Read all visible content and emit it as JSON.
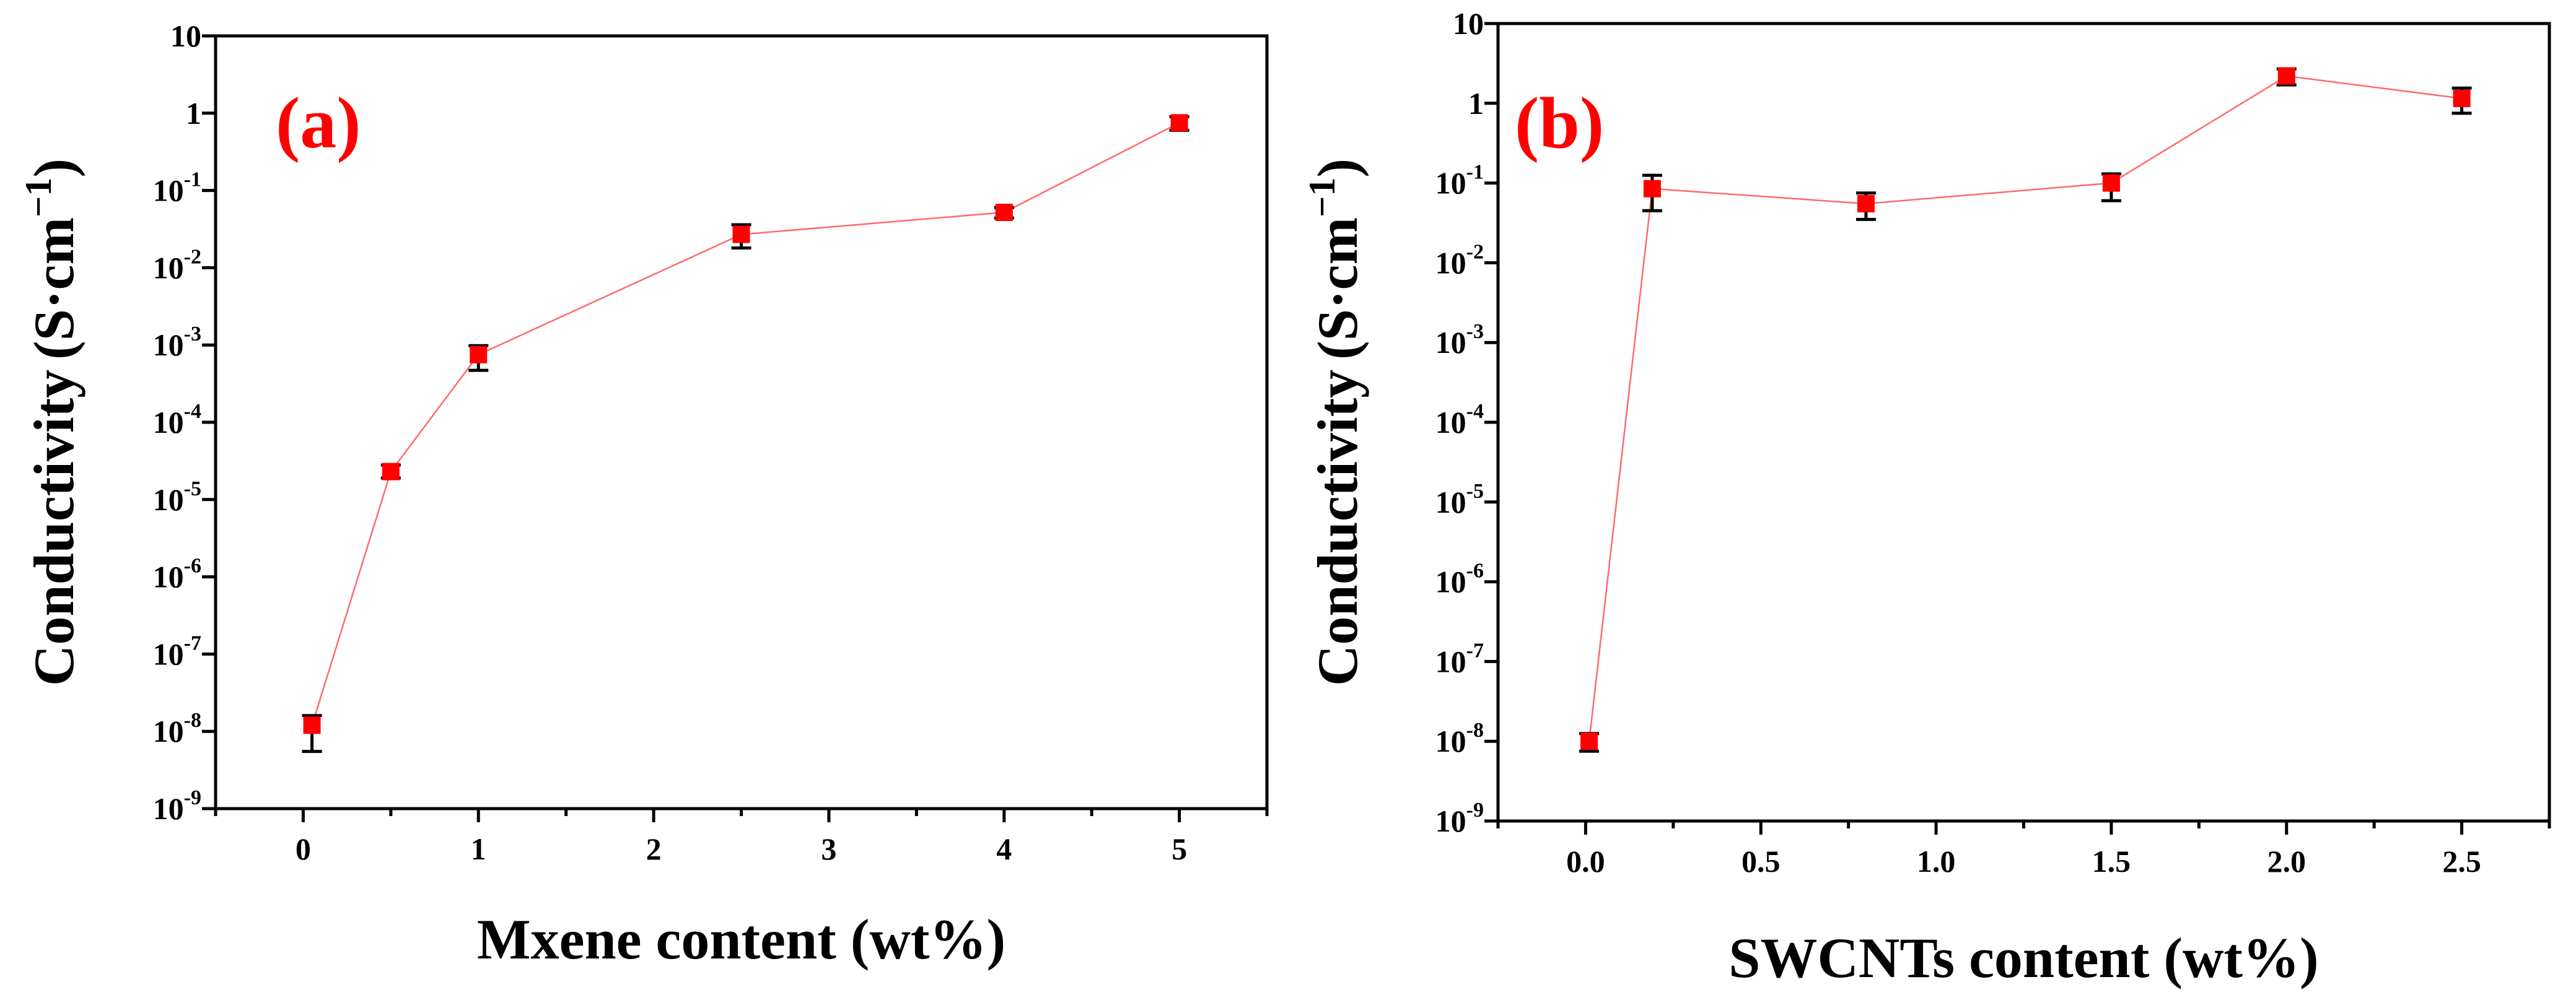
{
  "chart_data": [
    {
      "type": "scatter",
      "panel_label": "(a)",
      "xlabel": "Mxene content (wt%)",
      "ylabel": {
        "main": "Conductivity",
        "unit_prefix": "(S·cm",
        "unit_exponent": "−1",
        "unit_suffix": ")"
      },
      "yscale": "log",
      "xlim": [
        -0.5,
        5.5
      ],
      "ylim_exp": [
        -9,
        1
      ],
      "x_ticks": [
        0,
        1,
        2,
        3,
        4,
        5
      ],
      "x_tick_labels": [
        "0",
        "1",
        "2",
        "3",
        "4",
        "5"
      ],
      "y_ticks": [
        {
          "exp": 1,
          "base": "10",
          "sup": ""
        },
        {
          "exp": 0,
          "base": "1",
          "sup": ""
        },
        {
          "exp": -1,
          "base": "10",
          "sup": "-1"
        },
        {
          "exp": -2,
          "base": "10",
          "sup": "-2"
        },
        {
          "exp": -3,
          "base": "10",
          "sup": "-3"
        },
        {
          "exp": -4,
          "base": "10",
          "sup": "-4"
        },
        {
          "exp": -5,
          "base": "10",
          "sup": "-5"
        },
        {
          "exp": -6,
          "base": "10",
          "sup": "-6"
        },
        {
          "exp": -7,
          "base": "10",
          "sup": "-7"
        },
        {
          "exp": -8,
          "base": "10",
          "sup": "-8"
        },
        {
          "exp": -9,
          "base": "10",
          "sup": "-9"
        }
      ],
      "series": [
        {
          "name": "Conductivity",
          "x": [
            0.05,
            0.5,
            1,
            2.5,
            4,
            5
          ],
          "y": [
            1.2e-08,
            2.3e-05,
            0.00075,
            0.027,
            0.052,
            0.75
          ],
          "err_low": [
            6.5e-09,
            4e-06,
            0.00028,
            0.009,
            0.008,
            0.15
          ],
          "err_high": [
            4e-09,
            5e-06,
            0.00023,
            0.009,
            0.008,
            0.15
          ]
        }
      ],
      "marker_color": "#ff0000",
      "line_color": "#ff6a6a",
      "label_color": "#ff0000"
    },
    {
      "type": "scatter",
      "panel_label": "(b)",
      "xlabel": "SWCNTs content (wt%)",
      "ylabel": {
        "main": "Conductivity",
        "unit_prefix": "(S·cm",
        "unit_exponent": "−1",
        "unit_suffix": ")"
      },
      "yscale": "log",
      "xlim": [
        -0.25,
        2.75
      ],
      "ylim_exp": [
        -9,
        1
      ],
      "x_ticks": [
        0,
        0.5,
        1,
        1.5,
        2,
        2.5
      ],
      "x_tick_labels": [
        "0.0",
        "0.5",
        "1.0",
        "1.5",
        "2.0",
        "2.5"
      ],
      "y_ticks": [
        {
          "exp": 1,
          "base": "10",
          "sup": ""
        },
        {
          "exp": 0,
          "base": "1",
          "sup": ""
        },
        {
          "exp": -1,
          "base": "10",
          "sup": "-1"
        },
        {
          "exp": -2,
          "base": "10",
          "sup": "-2"
        },
        {
          "exp": -3,
          "base": "10",
          "sup": "-3"
        },
        {
          "exp": -4,
          "base": "10",
          "sup": "-4"
        },
        {
          "exp": -5,
          "base": "10",
          "sup": "-5"
        },
        {
          "exp": -6,
          "base": "10",
          "sup": "-6"
        },
        {
          "exp": -7,
          "base": "10",
          "sup": "-7"
        },
        {
          "exp": -8,
          "base": "10",
          "sup": "-8"
        },
        {
          "exp": -9,
          "base": "10",
          "sup": "-9"
        }
      ],
      "series": [
        {
          "name": "Conductivity",
          "x": [
            0.01,
            0.19,
            0.8,
            1.5,
            2.0,
            2.5
          ],
          "y": [
            1e-08,
            0.085,
            0.055,
            0.1,
            2.2,
            1.15
          ],
          "err_low": [
            2.5e-09,
            0.04,
            0.02,
            0.04,
            0.5,
            0.4
          ],
          "err_high": [
            2.5e-09,
            0.04,
            0.02,
            0.03,
            0.5,
            0.4
          ]
        }
      ],
      "marker_color": "#ff0000",
      "line_color": "#ff6a6a",
      "label_color": "#ff0000"
    }
  ]
}
